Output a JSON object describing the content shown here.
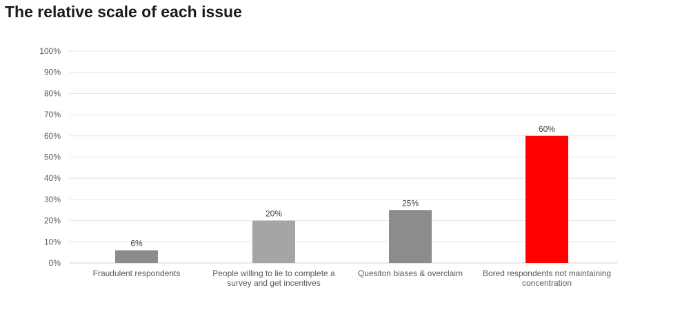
{
  "chart_data": {
    "type": "bar",
    "title": "The relative scale of each issue",
    "xlabel": "",
    "ylabel": "",
    "categories": [
      "Fraudulent respondents",
      "People willing to lie to complete a survey and get incentives",
      "Quesiton biases & overclaim",
      "Bored respondents not maintaining concentration"
    ],
    "category_lines": [
      [
        "Fraudulent respondents"
      ],
      [
        "People willing to lie to complete a",
        "survey and get incentives"
      ],
      [
        "Quesiton biases & overclaim"
      ],
      [
        "Bored respondents not maintaining",
        "concentration"
      ]
    ],
    "values": [
      6,
      20,
      25,
      60
    ],
    "data_labels": [
      "6%",
      "20%",
      "25%",
      "60%"
    ],
    "bar_colors": [
      "#8c8c8c",
      "#a5a5a5",
      "#8c8c8c",
      "#ff0000"
    ],
    "ylim": [
      0,
      100
    ],
    "yticks": [
      0,
      10,
      20,
      30,
      40,
      50,
      60,
      70,
      80,
      90,
      100
    ],
    "ytick_labels": [
      "0%",
      "10%",
      "20%",
      "30%",
      "40%",
      "50%",
      "60%",
      "70%",
      "80%",
      "90%",
      "100%"
    ],
    "grid": true,
    "legend": "none",
    "gridline_color": "#e6e6e6"
  }
}
